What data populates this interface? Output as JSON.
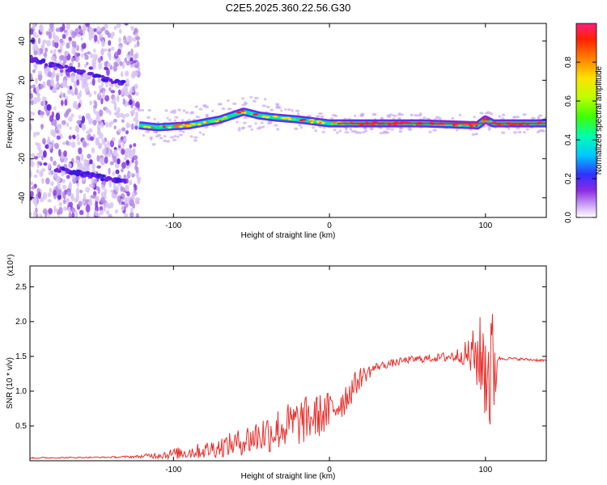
{
  "figure_title": "C2E5.2025.360.22.56.G30",
  "colors": {
    "snr_line": "#e8302c",
    "axis": "#000000"
  },
  "chart_data": [
    {
      "type": "heatmap",
      "title": "C2E5.2025.360.22.56.G30",
      "xlabel": "Height of straight line (km)",
      "ylabel": "Frequency (Hz)",
      "xlim": [
        -192,
        139
      ],
      "ylim": [
        -50,
        49
      ],
      "xticks": [
        "-100",
        "0",
        "100"
      ],
      "xtick_values": [
        -100,
        0,
        100
      ],
      "yticks": [
        "-40",
        "-20",
        "0",
        "20",
        "40"
      ],
      "ytick_values": [
        -40,
        -20,
        0,
        20,
        40
      ],
      "colorbar": {
        "label": "Normalized spectral amplitude",
        "ticks": [
          "0.0",
          "0.2",
          "0.4",
          "0.6",
          "0.8"
        ],
        "tick_values": [
          0.0,
          0.2,
          0.4,
          0.6,
          0.8
        ],
        "range": [
          0,
          1
        ]
      },
      "ridge": {
        "description_points_x": [
          -122,
          -110,
          -90,
          -70,
          -55,
          -45,
          -35,
          -20,
          -10,
          0,
          20,
          60,
          95,
          100,
          105,
          139
        ],
        "description_points_y": [
          -3,
          -4,
          -3,
          0,
          4,
          2,
          1,
          0,
          -1,
          -2,
          -2,
          -2,
          -3,
          0,
          -2,
          -2
        ]
      },
      "noise_region_x": [
        -192,
        -122
      ],
      "noise_bands": [
        {
          "x": [
            -192,
            -130
          ],
          "y": [
            31,
            18
          ]
        },
        {
          "x": [
            -176,
            -130
          ],
          "y": [
            -25,
            -32
          ]
        }
      ]
    },
    {
      "type": "line",
      "xlabel": "Height of straight line (km)",
      "ylabel": "SNR (10 * v/v)",
      "y_multiplier": "(x10⁴)",
      "xlim": [
        -192,
        139
      ],
      "ylim": [
        0,
        2.8
      ],
      "xticks": [
        "-100",
        "0",
        "100"
      ],
      "xtick_values": [
        -100,
        0,
        100
      ],
      "yticks": [
        "0.5",
        "1.0",
        "1.5",
        "2.0",
        "2.5"
      ],
      "ytick_values": [
        0.5,
        1.0,
        1.5,
        2.0,
        2.5
      ],
      "envelope_x": [
        -192,
        -140,
        -122,
        -100,
        -80,
        -60,
        -40,
        -20,
        0,
        10,
        20,
        30,
        50,
        70,
        85,
        95,
        100,
        103,
        106,
        108,
        115,
        139
      ],
      "envelope_base": [
        0.04,
        0.05,
        0.06,
        0.1,
        0.15,
        0.25,
        0.4,
        0.55,
        0.7,
        0.9,
        1.2,
        1.35,
        1.45,
        1.48,
        1.52,
        1.5,
        1.4,
        1.3,
        1.3,
        1.47,
        1.47,
        1.44
      ],
      "envelope_noise": [
        0.01,
        0.01,
        0.02,
        0.08,
        0.12,
        0.18,
        0.3,
        0.35,
        0.3,
        0.25,
        0.15,
        0.06,
        0.05,
        0.06,
        0.12,
        0.5,
        0.9,
        1.1,
        0.7,
        0.03,
        0.02,
        0.02
      ]
    }
  ]
}
